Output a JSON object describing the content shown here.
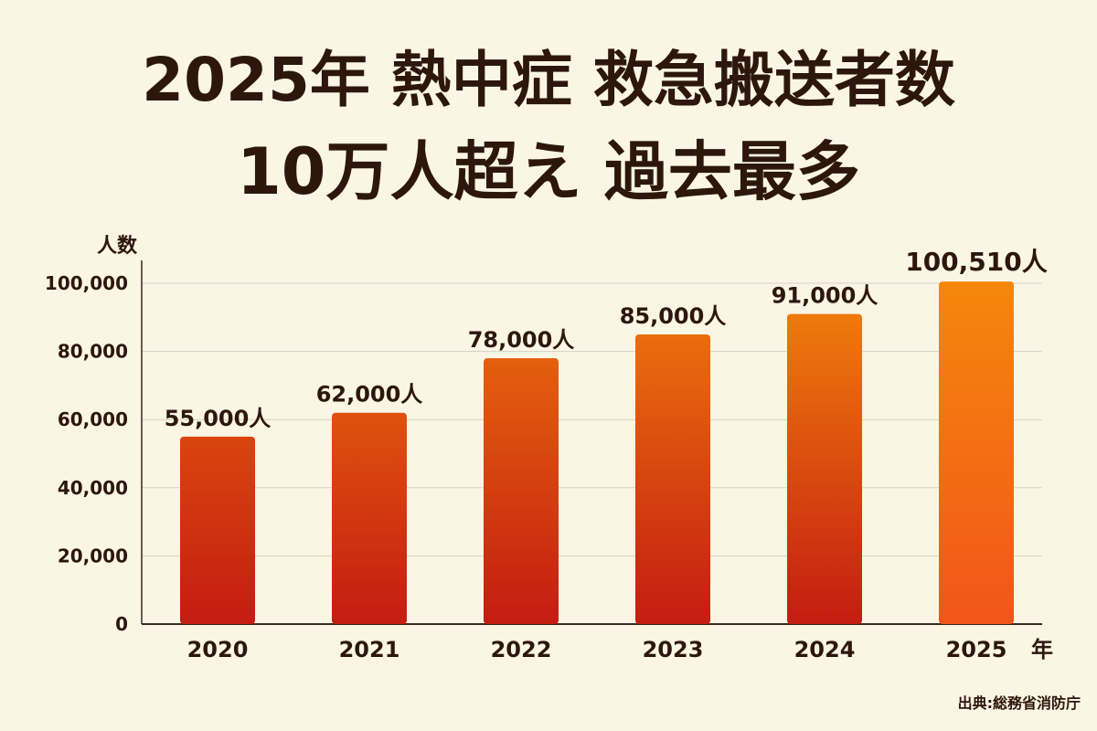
{
  "title": {
    "line1": "2025年 熱中症 救急搬送者数",
    "line2": "10万人超え 過去最多"
  },
  "source": "出典:総務省消防庁",
  "colors": {
    "background": "#faf5e4",
    "text": "#2d170d",
    "grid": "#d8d2c4",
    "bar_bottom": "#c41c12",
    "bar_top_low": "#d9450e",
    "bar_top_high": "#f5870c"
  },
  "chart_data": {
    "type": "bar",
    "categories": [
      "2020",
      "2021",
      "2022",
      "2023",
      "2024",
      "2025"
    ],
    "values": [
      55000,
      62000,
      78000,
      85000,
      91000,
      100510
    ],
    "data_labels": [
      "55,000人",
      "62,000人",
      "78,000人",
      "85,000人",
      "91,000人",
      "100,510人"
    ],
    "ylabel": "人数",
    "xlabel": "年",
    "ylim": [
      0,
      100000
    ],
    "yticks": [
      0,
      20000,
      40000,
      60000,
      80000,
      100000
    ],
    "ytick_labels": [
      "0",
      "20,000",
      "40,000",
      "60,000",
      "80,000",
      "100,000"
    ],
    "grid": true,
    "legend": "none"
  }
}
